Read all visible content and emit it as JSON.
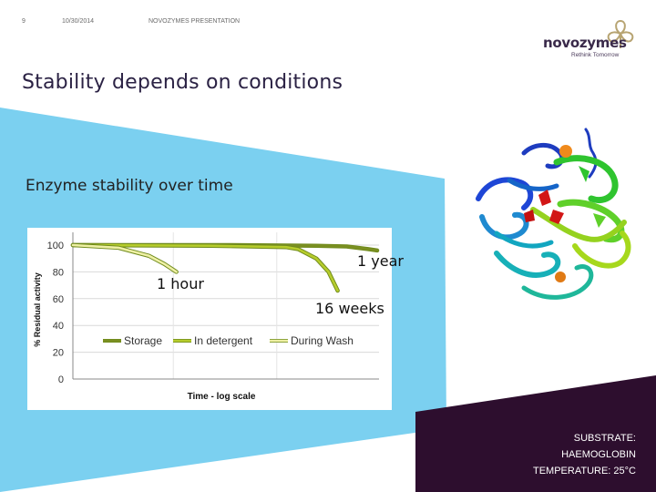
{
  "header": {
    "slide_number": "9",
    "date": "10/30/2014",
    "presentation": "NOVOZYMES PRESENTATION"
  },
  "logo": {
    "name": "novozymes",
    "tagline": "Rethink Tomorrow"
  },
  "title": "Stability depends on conditions",
  "subtitle": "Enzyme stability over time",
  "callouts": {
    "year": "1 year",
    "hour": "1 hour",
    "weeks": "16 weeks"
  },
  "side_info": {
    "line1": "SUBSTRATE:",
    "line2": "HAEMOGLOBIN",
    "line3": "TEMPERATURE: 25°C"
  },
  "colors": {
    "title": "#2b2244",
    "light_blue": "#7bd0f0",
    "dark_purple": "#2d0e2e",
    "storage": "#7a8f21",
    "in_detergent": "#b6cc2c",
    "during_wash": "#eef0a4"
  },
  "chart_data": {
    "type": "line",
    "xlabel": "Time - log scale",
    "ylabel": "% Residual activity",
    "ylim": [
      0,
      100
    ],
    "yticks": [
      0,
      20,
      40,
      60,
      80,
      100
    ],
    "legend_position": "bottom-inside",
    "grid": true,
    "series": [
      {
        "name": "Storage",
        "color": "#7a8f21",
        "points": [
          [
            0.0,
            100
          ],
          [
            0.5,
            100
          ],
          [
            0.8,
            99.5
          ],
          [
            0.9,
            99
          ],
          [
            0.97,
            97
          ],
          [
            1.0,
            96
          ]
        ]
      },
      {
        "name": "In detergent",
        "color": "#b6cc2c",
        "points": [
          [
            0.0,
            100
          ],
          [
            0.45,
            99.5
          ],
          [
            0.7,
            98.5
          ],
          [
            0.74,
            97
          ],
          [
            0.8,
            90
          ],
          [
            0.84,
            80
          ],
          [
            0.87,
            66
          ]
        ]
      },
      {
        "name": "During Wash",
        "color": "#eef0a4",
        "points": [
          [
            0.0,
            100
          ],
          [
            0.15,
            98
          ],
          [
            0.25,
            92
          ],
          [
            0.3,
            86
          ],
          [
            0.34,
            80
          ]
        ]
      }
    ]
  }
}
